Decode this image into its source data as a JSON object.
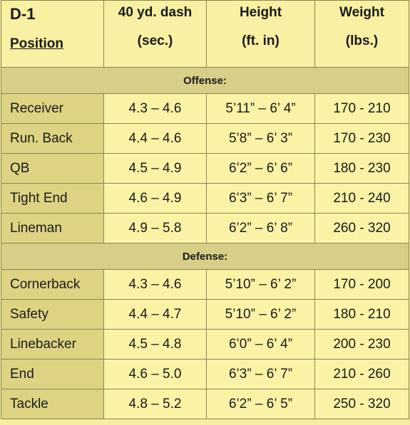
{
  "header": {
    "title": "D-1",
    "position_label": "Position",
    "columns": [
      {
        "line1": "40 yd. dash",
        "line2": "(sec.)"
      },
      {
        "line1": "Height",
        "line2": "(ft. in)"
      },
      {
        "line1": "Weight",
        "line2": "(lbs.)"
      }
    ]
  },
  "sections": [
    {
      "label": "Offense:",
      "rows": [
        {
          "position": "Receiver",
          "dash": "4.3 – 4.6",
          "height": "5’11” – 6’ 4”",
          "weight": "170 - 210"
        },
        {
          "position": "Run. Back",
          "dash": "4.4 – 4.6",
          "height": "5’8” – 6’ 3”",
          "weight": "170 - 230"
        },
        {
          "position": "QB",
          "dash": "4.5 – 4.9",
          "height": "6’2” – 6’ 6”",
          "weight": "180 - 230"
        },
        {
          "position": "Tight End",
          "dash": "4.6 – 4.9",
          "height": "6’3” – 6’ 7”",
          "weight": "210 - 240"
        },
        {
          "position": "Lineman",
          "dash": "4.9 – 5.8",
          "height": "6’2” – 6’ 8”",
          "weight": "260 - 320"
        }
      ]
    },
    {
      "label": "Defense:",
      "rows": [
        {
          "position": "Cornerback",
          "dash": "4.3 – 4.6",
          "height": "5’10” – 6’ 2”",
          "weight": "170 - 200"
        },
        {
          "position": "Safety",
          "dash": "4.4 – 4.7",
          "height": "5’10” – 6’ 2”",
          "weight": "180 - 210"
        },
        {
          "position": "Linebacker",
          "dash": "4.5 – 4.8",
          "height": "6’0” – 6’ 4”",
          "weight": "200 - 230"
        },
        {
          "position": "End",
          "dash": "4.6 – 5.0",
          "height": "6’3” – 6’ 7”",
          "weight": "210 - 260"
        },
        {
          "position": "Tackle",
          "dash": "4.8 – 5.2",
          "height": "6’2” – 6’ 5”",
          "weight": "250 - 320"
        }
      ]
    }
  ]
}
